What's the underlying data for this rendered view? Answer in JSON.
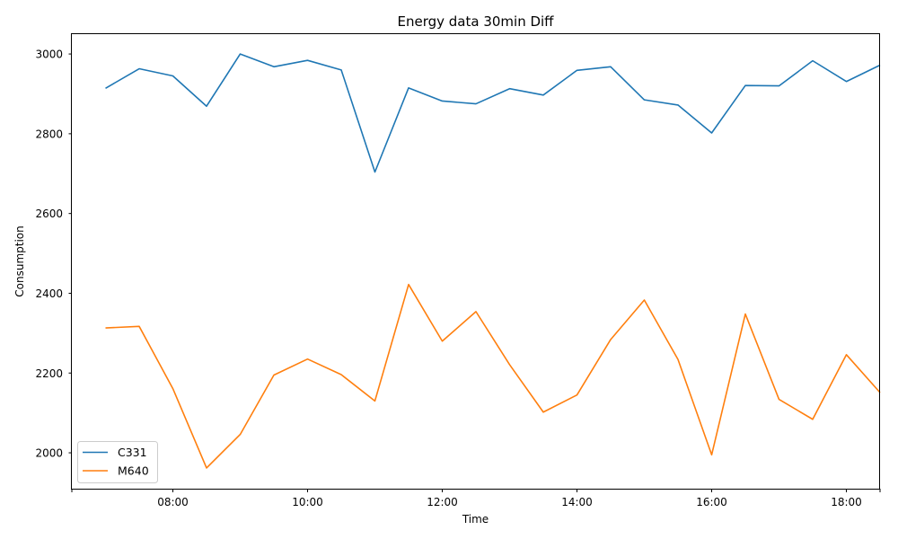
{
  "chart_data": {
    "type": "line",
    "title": "Energy data 30min Diff",
    "xlabel": "Time",
    "ylabel": "Consumption",
    "x": [
      "07:00",
      "07:30",
      "08:00",
      "08:30",
      "09:00",
      "09:30",
      "10:00",
      "10:30",
      "11:00",
      "11:30",
      "12:00",
      "12:30",
      "13:00",
      "13:30",
      "14:00",
      "14:30",
      "15:00",
      "15:30",
      "16:00",
      "16:30",
      "17:00",
      "17:30",
      "18:00",
      "18:30"
    ],
    "x_tick_labels": [
      "08:00",
      "10:00",
      "12:00",
      "14:00",
      "16:00",
      "18:00"
    ],
    "xlim": [
      "06:30",
      "18:30"
    ],
    "ylim": [
      1910,
      3052
    ],
    "y_ticks": [
      2000,
      2200,
      2400,
      2600,
      2800,
      3000
    ],
    "grid": false,
    "legend_position": "lower-left",
    "series": [
      {
        "name": "C331",
        "color": "#1f77b4",
        "values": [
          2914,
          2963,
          2945,
          2869,
          3000,
          2968,
          2984,
          2960,
          2704,
          2915,
          2882,
          2875,
          2913,
          2897,
          2959,
          2968,
          2885,
          2872,
          2802,
          2921,
          2920,
          2983,
          2931,
          2972
        ]
      },
      {
        "name": "M640",
        "color": "#ff7f0e",
        "values": [
          2313,
          2317,
          2161,
          1962,
          2046,
          2195,
          2235,
          2196,
          2130,
          2422,
          2280,
          2354,
          2221,
          2102,
          2145,
          2284,
          2383,
          2234,
          1995,
          2348,
          2134,
          2084,
          2246,
          2151
        ]
      }
    ]
  }
}
